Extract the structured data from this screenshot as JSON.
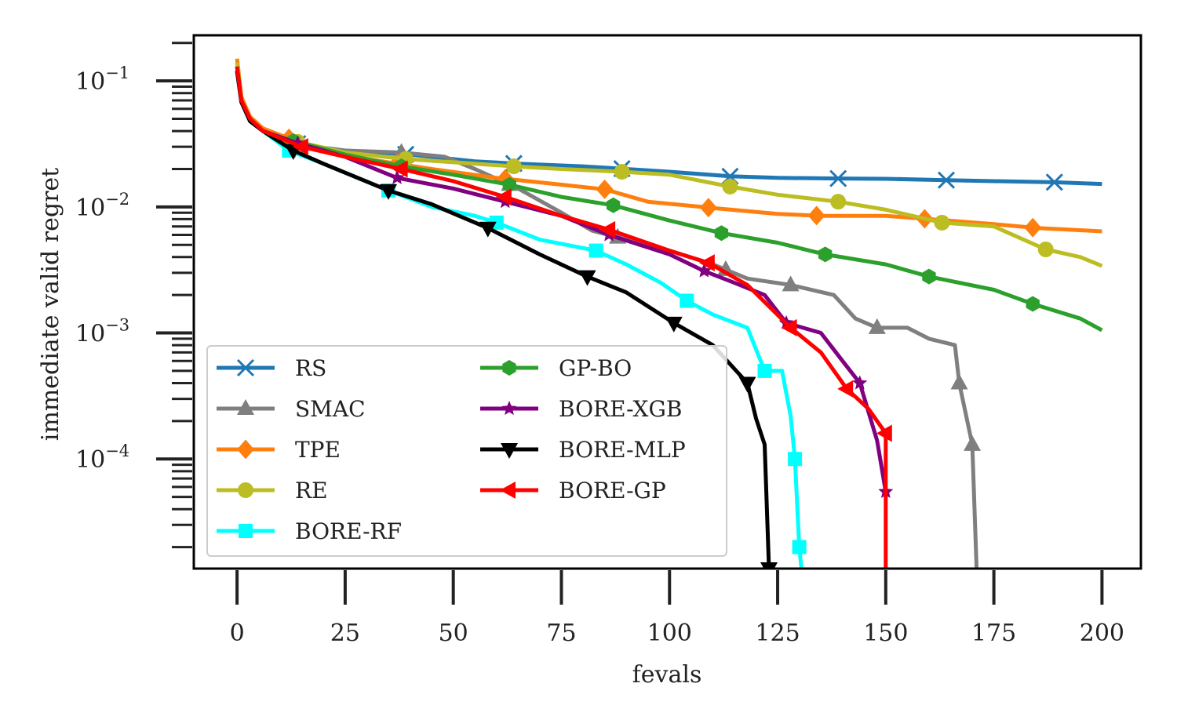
{
  "chart_data": {
    "type": "line",
    "xlabel": "fevals",
    "ylabel": "immediate valid regret",
    "xlim": [
      -10,
      209
    ],
    "ylim": [
      1.35e-05,
      0.23
    ],
    "yscale": "log",
    "xticks": [
      0,
      25,
      50,
      75,
      100,
      125,
      150,
      175,
      200
    ],
    "xtick_labels": [
      "0",
      "25",
      "50",
      "75",
      "100",
      "125",
      "150",
      "175",
      "200"
    ],
    "yticks": [
      0.1,
      0.01,
      0.001,
      0.0001
    ],
    "ytick_labels": [
      {
        "base": "10",
        "exp": "−1"
      },
      {
        "base": "10",
        "exp": "−2"
      },
      {
        "base": "10",
        "exp": "−3"
      },
      {
        "base": "10",
        "exp": "−4"
      }
    ],
    "grid": false,
    "legend_position": "lower-left",
    "series": [
      {
        "name": "RS",
        "color": "#1f77b4",
        "marker": "x",
        "points": [
          [
            0,
            0.13
          ],
          [
            1,
            0.07
          ],
          [
            3,
            0.05
          ],
          [
            6,
            0.04
          ],
          [
            10,
            0.035
          ],
          [
            15,
            0.031
          ],
          [
            25,
            0.028
          ],
          [
            40,
            0.026
          ],
          [
            55,
            0.023
          ],
          [
            65,
            0.022
          ],
          [
            80,
            0.021
          ],
          [
            90,
            0.02
          ],
          [
            100,
            0.019
          ],
          [
            114,
            0.0175
          ],
          [
            125,
            0.017
          ],
          [
            139,
            0.0168
          ],
          [
            150,
            0.0167
          ],
          [
            164,
            0.0163
          ],
          [
            175,
            0.016
          ],
          [
            189,
            0.0157
          ],
          [
            200,
            0.0152
          ]
        ],
        "markers_at": [
          14,
          39,
          64,
          89,
          114,
          139,
          164,
          189
        ]
      },
      {
        "name": "SMAC",
        "color": "#7f7f7f",
        "marker": "triangle-up",
        "points": [
          [
            0,
            0.13
          ],
          [
            1,
            0.07
          ],
          [
            3,
            0.05
          ],
          [
            6,
            0.04
          ],
          [
            10,
            0.035
          ],
          [
            15,
            0.03
          ],
          [
            25,
            0.028
          ],
          [
            38,
            0.027
          ],
          [
            48,
            0.025
          ],
          [
            55,
            0.02
          ],
          [
            65,
            0.014
          ],
          [
            75,
            0.009
          ],
          [
            82,
            0.0065
          ],
          [
            90,
            0.0055
          ],
          [
            100,
            0.0045
          ],
          [
            110,
            0.0035
          ],
          [
            118,
            0.0027
          ],
          [
            128,
            0.0024
          ],
          [
            138,
            0.002
          ],
          [
            143,
            0.0013
          ],
          [
            148,
            0.0011
          ],
          [
            155,
            0.0011
          ],
          [
            160,
            0.0009
          ],
          [
            166,
            0.0008
          ],
          [
            167,
            0.0004
          ],
          [
            170,
            0.00013
          ],
          [
            171,
            1.35e-05
          ]
        ],
        "markers_at": [
          13,
          38,
          63,
          88,
          113,
          128,
          148,
          167,
          170
        ]
      },
      {
        "name": "TPE",
        "color": "#ff7f0e",
        "marker": "diamond",
        "points": [
          [
            0,
            0.15
          ],
          [
            1,
            0.075
          ],
          [
            3,
            0.052
          ],
          [
            6,
            0.042
          ],
          [
            12,
            0.035
          ],
          [
            20,
            0.028
          ],
          [
            30,
            0.024
          ],
          [
            45,
            0.02
          ],
          [
            60,
            0.017
          ],
          [
            75,
            0.015
          ],
          [
            85,
            0.0138
          ],
          [
            95,
            0.011
          ],
          [
            110,
            0.0098
          ],
          [
            125,
            0.0088
          ],
          [
            135,
            0.0085
          ],
          [
            150,
            0.0085
          ],
          [
            160,
            0.008
          ],
          [
            175,
            0.0073
          ],
          [
            185,
            0.0068
          ],
          [
            200,
            0.0064
          ]
        ],
        "markers_at": [
          12,
          37,
          62,
          85,
          109,
          134,
          159,
          184
        ]
      },
      {
        "name": "RE",
        "color": "#bcbd22",
        "marker": "circle",
        "points": [
          [
            0,
            0.14
          ],
          [
            1,
            0.072
          ],
          [
            3,
            0.05
          ],
          [
            6,
            0.04
          ],
          [
            12,
            0.034
          ],
          [
            25,
            0.027
          ],
          [
            39,
            0.024
          ],
          [
            55,
            0.022
          ],
          [
            64,
            0.021
          ],
          [
            75,
            0.02
          ],
          [
            89,
            0.019
          ],
          [
            100,
            0.018
          ],
          [
            114,
            0.0145
          ],
          [
            125,
            0.0125
          ],
          [
            139,
            0.011
          ],
          [
            150,
            0.0095
          ],
          [
            163,
            0.0075
          ],
          [
            175,
            0.007
          ],
          [
            187,
            0.0046
          ],
          [
            195,
            0.004
          ],
          [
            200,
            0.0034
          ]
        ],
        "markers_at": [
          14,
          39,
          64,
          89,
          114,
          139,
          163,
          187
        ]
      },
      {
        "name": "BORE-RF",
        "color": "#00ffff",
        "marker": "square",
        "points": [
          [
            0,
            0.12
          ],
          [
            1,
            0.068
          ],
          [
            3,
            0.048
          ],
          [
            6,
            0.04
          ],
          [
            12,
            0.028
          ],
          [
            20,
            0.022
          ],
          [
            35,
            0.0135
          ],
          [
            45,
            0.01
          ],
          [
            55,
            0.0085
          ],
          [
            60,
            0.0075
          ],
          [
            70,
            0.0055
          ],
          [
            83,
            0.0045
          ],
          [
            90,
            0.0035
          ],
          [
            98,
            0.0025
          ],
          [
            104,
            0.0018
          ],
          [
            110,
            0.0014
          ],
          [
            118,
            0.0011
          ],
          [
            122,
            0.0005
          ],
          [
            126,
            0.0005
          ],
          [
            128,
            0.00022
          ],
          [
            129,
            0.0001
          ],
          [
            130,
            2e-05
          ],
          [
            130.5,
            1.35e-05
          ]
        ],
        "markers_at": [
          12,
          35,
          60,
          83,
          104,
          122,
          129,
          130
        ]
      },
      {
        "name": "GP-BO",
        "color": "#2ca02c",
        "marker": "hexagon",
        "points": [
          [
            0,
            0.13
          ],
          [
            1,
            0.07
          ],
          [
            3,
            0.05
          ],
          [
            6,
            0.04
          ],
          [
            12,
            0.034
          ],
          [
            25,
            0.026
          ],
          [
            38,
            0.021
          ],
          [
            50,
            0.018
          ],
          [
            63,
            0.015
          ],
          [
            75,
            0.012
          ],
          [
            87,
            0.0103
          ],
          [
            100,
            0.0078
          ],
          [
            112,
            0.0062
          ],
          [
            125,
            0.0052
          ],
          [
            136,
            0.0042
          ],
          [
            150,
            0.0035
          ],
          [
            160,
            0.0028
          ],
          [
            175,
            0.0022
          ],
          [
            184,
            0.0017
          ],
          [
            195,
            0.0013
          ],
          [
            200,
            0.00105
          ]
        ],
        "markers_at": [
          13,
          38,
          63,
          87,
          112,
          136,
          160,
          184
        ]
      },
      {
        "name": "BORE-XGB",
        "color": "#800080",
        "marker": "star",
        "points": [
          [
            0,
            0.12
          ],
          [
            1,
            0.068
          ],
          [
            3,
            0.048
          ],
          [
            6,
            0.04
          ],
          [
            14,
            0.032
          ],
          [
            25,
            0.025
          ],
          [
            37,
            0.017
          ],
          [
            50,
            0.014
          ],
          [
            62,
            0.011
          ],
          [
            75,
            0.0085
          ],
          [
            86,
            0.006
          ],
          [
            100,
            0.0042
          ],
          [
            108,
            0.0031
          ],
          [
            115,
            0.0025
          ],
          [
            122,
            0.002
          ],
          [
            127,
            0.0012
          ],
          [
            135,
            0.001
          ],
          [
            140,
            0.0006
          ],
          [
            144,
            0.0004
          ],
          [
            148,
            0.00014
          ],
          [
            150,
            5.5e-05
          ]
        ],
        "markers_at": [
          14,
          37,
          62,
          86,
          108,
          127,
          144,
          150
        ]
      },
      {
        "name": "BORE-MLP",
        "color": "#000000",
        "marker": "triangle-down",
        "points": [
          [
            0,
            0.12
          ],
          [
            1,
            0.068
          ],
          [
            3,
            0.048
          ],
          [
            6,
            0.04
          ],
          [
            13,
            0.028
          ],
          [
            20,
            0.022
          ],
          [
            35,
            0.0135
          ],
          [
            45,
            0.0105
          ],
          [
            58,
            0.0068
          ],
          [
            70,
            0.0042
          ],
          [
            81,
            0.0028
          ],
          [
            90,
            0.0021
          ],
          [
            101,
            0.0012
          ],
          [
            110,
            0.0008
          ],
          [
            118,
            0.0004
          ],
          [
            120,
            0.00021
          ],
          [
            122,
            0.00013
          ],
          [
            123,
            1.35e-05
          ]
        ],
        "markers_at": [
          13,
          35,
          58,
          81,
          101,
          118,
          123
        ]
      },
      {
        "name": "BORE-GP",
        "color": "#ff0000",
        "marker": "triangle-left",
        "points": [
          [
            0,
            0.13
          ],
          [
            1,
            0.07
          ],
          [
            3,
            0.05
          ],
          [
            6,
            0.04
          ],
          [
            15,
            0.03
          ],
          [
            25,
            0.025
          ],
          [
            38,
            0.02
          ],
          [
            50,
            0.016
          ],
          [
            62,
            0.012
          ],
          [
            75,
            0.0085
          ],
          [
            86,
            0.0066
          ],
          [
            100,
            0.0045
          ],
          [
            109,
            0.0036
          ],
          [
            118,
            0.0024
          ],
          [
            128,
            0.0011
          ],
          [
            135,
            0.0007
          ],
          [
            141,
            0.00036
          ],
          [
            146,
            0.00025
          ],
          [
            150,
            0.00016
          ],
          [
            150,
            1.35e-05
          ]
        ],
        "markers_at": [
          15,
          38,
          62,
          86,
          109,
          128,
          141,
          150
        ]
      }
    ]
  }
}
